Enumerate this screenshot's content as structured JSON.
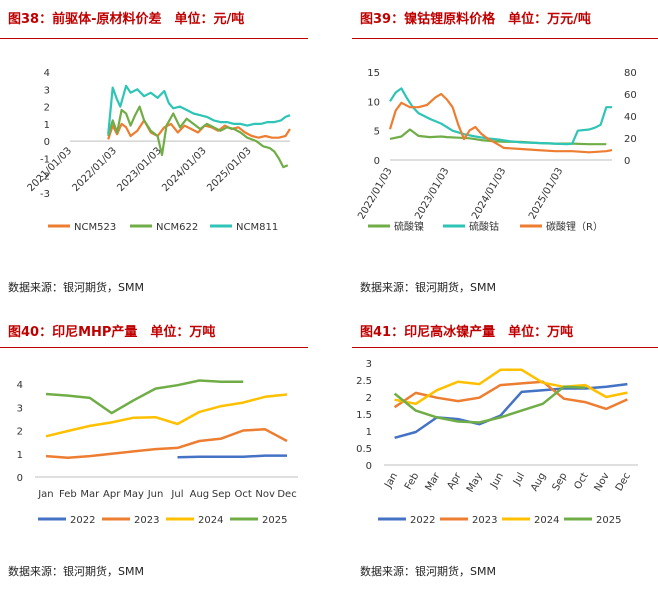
{
  "page": {
    "sources": [
      "数据来源：银河期货，SMM",
      "数据来源：银河期货，SMM",
      "数据来源：银河期货，SMM",
      "数据来源：银河期货，SMM"
    ]
  },
  "chart_data": [
    {
      "id": "fig38",
      "type": "line",
      "title": "图38：前驱体-原材料价差　单位：元/吨",
      "ylim": [
        -3,
        4
      ],
      "yticks": [
        "4",
        "3",
        "2",
        "1",
        "0",
        "-1",
        "-2",
        "-3"
      ],
      "xticks": [
        "2021/01/03",
        "2022/01/03",
        "2023/01/03",
        "2024/01/03",
        "2025/01/03"
      ],
      "xdomain": [
        2021.0,
        2025.9
      ],
      "series": [
        {
          "name": "NCM523",
          "color": "#ed7d31",
          "x": [
            2021.85,
            2021.95,
            2022.05,
            2022.15,
            2022.25,
            2022.35,
            2022.5,
            2022.65,
            2022.8,
            2022.95,
            2023.1,
            2023.25,
            2023.4,
            2023.55,
            2023.7,
            2023.85,
            2024.0,
            2024.15,
            2024.3,
            2024.45,
            2024.6,
            2024.75,
            2024.9,
            2025.05,
            2025.2,
            2025.35,
            2025.5,
            2025.65,
            2025.8,
            2025.9
          ],
          "y": [
            0.1,
            0.9,
            0.4,
            1.0,
            0.8,
            0.3,
            0.6,
            1.2,
            0.5,
            0.3,
            0.8,
            1.0,
            0.5,
            0.9,
            0.7,
            0.5,
            0.9,
            0.8,
            0.6,
            0.9,
            0.7,
            0.8,
            0.5,
            0.3,
            0.2,
            0.3,
            0.2,
            0.2,
            0.3,
            0.7
          ]
        },
        {
          "name": "NCM622",
          "color": "#70ad47",
          "x": [
            2021.85,
            2021.95,
            2022.05,
            2022.15,
            2022.25,
            2022.35,
            2022.45,
            2022.55,
            2022.65,
            2022.8,
            2022.95,
            2023.05,
            2023.15,
            2023.3,
            2023.45,
            2023.6,
            2023.75,
            2023.9,
            2024.05,
            2024.2,
            2024.35,
            2024.5,
            2024.65,
            2024.8,
            2024.95,
            2025.05,
            2025.15,
            2025.3,
            2025.45,
            2025.55,
            2025.65,
            2025.75,
            2025.85
          ],
          "y": [
            0.3,
            1.2,
            0.5,
            1.8,
            1.6,
            0.9,
            1.5,
            2.0,
            1.2,
            0.6,
            0.3,
            -0.8,
            0.9,
            1.6,
            0.8,
            1.3,
            1.0,
            0.7,
            1.0,
            0.8,
            0.6,
            0.8,
            0.7,
            0.5,
            0.2,
            0.1,
            0.0,
            -0.3,
            -0.4,
            -0.6,
            -1.0,
            -1.5,
            -1.4
          ]
        },
        {
          "name": "NCM811",
          "color": "#2ec4b6",
          "x": [
            2021.85,
            2021.95,
            2022.05,
            2022.12,
            2022.25,
            2022.35,
            2022.5,
            2022.65,
            2022.8,
            2022.95,
            2023.1,
            2023.2,
            2023.3,
            2023.45,
            2023.6,
            2023.75,
            2023.9,
            2024.05,
            2024.2,
            2024.35,
            2024.5,
            2024.65,
            2024.8,
            2024.95,
            2025.1,
            2025.25,
            2025.4,
            2025.55,
            2025.7,
            2025.8,
            2025.9
          ],
          "y": [
            0.4,
            3.1,
            2.4,
            2.0,
            3.2,
            2.8,
            3.0,
            2.6,
            2.8,
            2.5,
            2.9,
            2.2,
            1.9,
            2.0,
            1.8,
            1.6,
            1.5,
            1.4,
            1.2,
            1.1,
            1.1,
            1.0,
            1.0,
            0.9,
            1.0,
            1.0,
            1.1,
            1.1,
            1.2,
            1.4,
            1.5
          ]
        }
      ]
    },
    {
      "id": "fig39",
      "type": "line",
      "title": "图39：镍钴锂原料价格　单位：万元/吨",
      "ylim": [
        0,
        15
      ],
      "y2lim": [
        0,
        80
      ],
      "yticks": [
        "15",
        "10",
        "5",
        "0"
      ],
      "y2ticks": [
        "80",
        "60",
        "40",
        "20",
        "0"
      ],
      "xticks": [
        "2022/01/03",
        "2023/01/03",
        "2024/01/03",
        "2025/01/03"
      ],
      "xdomain": [
        2022.0,
        2025.9
      ],
      "series": [
        {
          "name": "硫酸镍",
          "color": "#70ad47",
          "axis": "left",
          "x": [
            2022.0,
            2022.2,
            2022.35,
            2022.5,
            2022.7,
            2022.9,
            2023.0,
            2023.2,
            2023.4,
            2023.6,
            2023.8,
            2024.0,
            2024.3,
            2024.6,
            2024.9,
            2025.2,
            2025.5,
            2025.8
          ],
          "y": [
            3.6,
            4.0,
            5.2,
            4.1,
            3.9,
            4.0,
            3.9,
            3.8,
            3.7,
            3.4,
            3.2,
            3.1,
            3.1,
            2.9,
            2.8,
            2.8,
            2.7,
            2.7
          ]
        },
        {
          "name": "硫酸钴",
          "color": "#2ec4b6",
          "axis": "left",
          "x": [
            2022.0,
            2022.1,
            2022.2,
            2022.3,
            2022.4,
            2022.5,
            2022.7,
            2022.9,
            2023.1,
            2023.3,
            2023.5,
            2023.7,
            2023.9,
            2024.1,
            2024.3,
            2024.6,
            2024.9,
            2025.1,
            2025.2,
            2025.3,
            2025.5,
            2025.6,
            2025.7,
            2025.8,
            2025.9
          ],
          "y": [
            10.0,
            11.5,
            12.2,
            10.5,
            9.0,
            8.0,
            7.0,
            6.2,
            5.0,
            4.4,
            4.0,
            3.7,
            3.5,
            3.2,
            3.0,
            2.9,
            2.8,
            2.7,
            2.8,
            5.0,
            5.2,
            5.5,
            6.0,
            9.0,
            9.0
          ]
        },
        {
          "name": "碳酸锂（R）",
          "color": "#ed7d31",
          "axis": "right",
          "x": [
            2022.0,
            2022.1,
            2022.2,
            2022.35,
            2022.5,
            2022.65,
            2022.8,
            2022.9,
            2023.0,
            2023.1,
            2023.2,
            2023.3,
            2023.4,
            2023.5,
            2023.6,
            2023.7,
            2023.8,
            2023.9,
            2024.0,
            2024.3,
            2024.6,
            2024.9,
            2025.2,
            2025.5,
            2025.8,
            2025.9
          ],
          "y": [
            28,
            45,
            52,
            48,
            48,
            50,
            57,
            60,
            55,
            48,
            32,
            19,
            27,
            30,
            24,
            20,
            17,
            14,
            11,
            10,
            9,
            8,
            8,
            7,
            8,
            9
          ]
        }
      ]
    },
    {
      "id": "fig40",
      "type": "line",
      "title": "图40：印尼MHP产量　单位：万吨",
      "ylim": [
        0,
        4
      ],
      "yticks": [
        "4",
        "3",
        "2",
        "1",
        "0"
      ],
      "categories": [
        "Jan",
        "Feb",
        "Mar",
        "Apr",
        "May",
        "Jun",
        "Jul",
        "Aug",
        "Sep",
        "Oct",
        "Nov",
        "Dec"
      ],
      "series": [
        {
          "name": "2022",
          "color": "#4472c4",
          "values": [
            null,
            null,
            null,
            null,
            null,
            null,
            0.85,
            0.87,
            0.87,
            0.87,
            0.92,
            0.92
          ]
        },
        {
          "name": "2023",
          "color": "#ed7d31",
          "values": [
            0.9,
            0.83,
            0.9,
            1.0,
            1.1,
            1.2,
            1.25,
            1.55,
            1.65,
            2.0,
            2.05,
            1.55
          ]
        },
        {
          "name": "2024",
          "color": "#ffc000",
          "values": [
            1.75,
            1.98,
            2.2,
            2.35,
            2.55,
            2.57,
            2.28,
            2.8,
            3.05,
            3.2,
            3.45,
            3.55
          ]
        },
        {
          "name": "2025",
          "color": "#70ad47",
          "values": [
            3.57,
            3.5,
            3.4,
            2.75,
            3.3,
            3.8,
            3.95,
            4.15,
            4.1,
            4.1,
            null,
            null
          ]
        }
      ]
    },
    {
      "id": "fig41",
      "type": "line",
      "title": "图41：印尼高冰镍产量　单位：万吨",
      "ylim": [
        0,
        3
      ],
      "yticks": [
        "3",
        "2.5",
        "2",
        "1.5",
        "1",
        "0.5",
        "0"
      ],
      "categories": [
        "Jan",
        "Feb",
        "Mar",
        "Apr",
        "May",
        "Jun",
        "Jul",
        "Aug",
        "Sep",
        "Oct",
        "Nov",
        "Dec"
      ],
      "series": [
        {
          "name": "2022",
          "color": "#4472c4",
          "values": [
            0.8,
            0.97,
            1.4,
            1.35,
            1.2,
            1.45,
            2.15,
            2.2,
            2.25,
            2.25,
            2.3,
            2.38
          ]
        },
        {
          "name": "2023",
          "color": "#ed7d31",
          "values": [
            1.7,
            2.12,
            1.98,
            1.88,
            1.98,
            2.35,
            2.4,
            2.45,
            1.95,
            1.85,
            1.65,
            1.93
          ]
        },
        {
          "name": "2024",
          "color": "#ffc000",
          "values": [
            1.92,
            1.8,
            2.2,
            2.45,
            2.38,
            2.8,
            2.8,
            2.42,
            2.3,
            2.35,
            2.0,
            2.13
          ]
        },
        {
          "name": "2025",
          "color": "#70ad47",
          "values": [
            2.1,
            1.6,
            1.4,
            1.28,
            1.25,
            1.4,
            1.6,
            1.8,
            2.3,
            2.27,
            null,
            null
          ]
        }
      ]
    }
  ]
}
